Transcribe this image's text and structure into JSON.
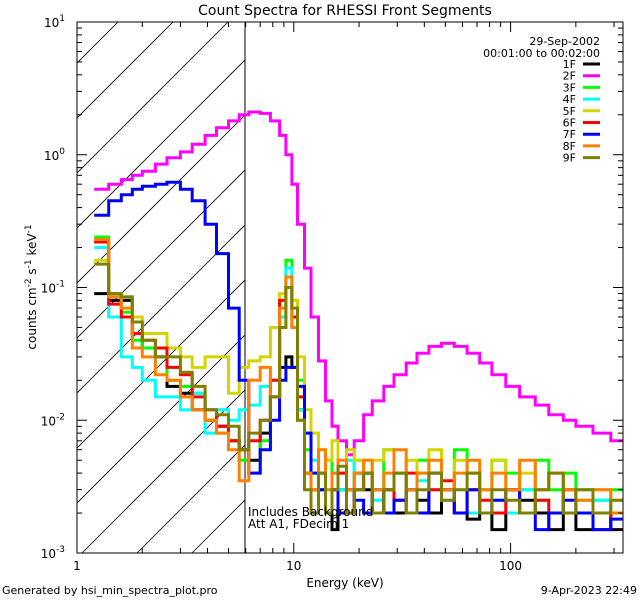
{
  "chart_data": {
    "type": "line",
    "title": "Count Spectra for RHESSI Front Segments",
    "xlabel": "Energy (keV)",
    "ylabel": "counts cm-2 s-1 keV-1",
    "xscale": "log",
    "yscale": "log",
    "xlim": [
      1,
      330
    ],
    "ylim": [
      0.001,
      10
    ],
    "x_tick_labels": [
      "1",
      "10",
      "100"
    ],
    "y_tick_labels": [
      "10^-3",
      "10^-2",
      "10^-1",
      "10^0",
      "10^1"
    ],
    "date": "29-Sep-2002",
    "time_range": "00:01:00 to 00:02:00",
    "annotations": [
      "Includes Background",
      "Att A1, FDecim 1"
    ],
    "hatched_region_keV": [
      1,
      6
    ],
    "legend_position": "top-right",
    "energy_bin_edges": [
      1.2,
      1.4,
      1.6,
      1.8,
      2.0,
      2.3,
      2.6,
      3.0,
      3.4,
      3.9,
      4.4,
      5.0,
      5.6,
      6.2,
      7.0,
      7.8,
      8.6,
      9.2,
      9.8,
      10.4,
      11.2,
      12,
      13,
      14,
      15,
      16,
      17.5,
      19,
      21,
      23,
      26,
      29,
      33,
      37,
      42,
      48,
      55,
      63,
      72,
      82,
      95,
      110,
      130,
      150,
      175,
      200,
      240,
      290,
      330
    ],
    "series": [
      {
        "name": "1F",
        "color": "#000000",
        "values": [
          0.09,
          0.08,
          0.08,
          0.045,
          0.035,
          0.03,
          0.018,
          0.016,
          0.012,
          0.01,
          0.009,
          0.007,
          0.006,
          0.005,
          0.008,
          0.015,
          0.025,
          0.03,
          0.025,
          0.012,
          0.004,
          0.002,
          0.003,
          0.002,
          0.0015,
          0.003,
          0.002,
          0.004,
          0.003,
          0.002,
          0.003,
          0.002,
          0.003,
          0.0025,
          0.002,
          0.003,
          0.002,
          0.0018,
          0.002,
          0.0015,
          0.002,
          0.0025,
          0.002,
          0.0015,
          0.002,
          0.0015,
          0.002,
          0.0015
        ]
      },
      {
        "name": "2F",
        "color": "#ff00ff",
        "values": [
          0.55,
          0.6,
          0.65,
          0.7,
          0.75,
          0.85,
          0.95,
          1.05,
          1.2,
          1.4,
          1.6,
          1.8,
          2.0,
          2.1,
          2.05,
          1.8,
          1.4,
          1.0,
          0.6,
          0.3,
          0.14,
          0.06,
          0.028,
          0.014,
          0.009,
          0.007,
          0.0055,
          0.007,
          0.011,
          0.014,
          0.018,
          0.022,
          0.027,
          0.032,
          0.036,
          0.038,
          0.036,
          0.032,
          0.027,
          0.022,
          0.018,
          0.015,
          0.013,
          0.011,
          0.01,
          0.009,
          0.008,
          0.007
        ]
      },
      {
        "name": "3F",
        "color": "#00ff00",
        "values": [
          0.24,
          0.09,
          0.065,
          0.04,
          0.035,
          0.03,
          0.02,
          0.018,
          0.016,
          0.01,
          0.008,
          0.007,
          0.005,
          0.004,
          0.007,
          0.015,
          0.05,
          0.16,
          0.06,
          0.02,
          0.006,
          0.004,
          0.003,
          0.005,
          0.003,
          0.004,
          0.003,
          0.005,
          0.004,
          0.003,
          0.006,
          0.004,
          0.003,
          0.005,
          0.004,
          0.003,
          0.006,
          0.004,
          0.003,
          0.005,
          0.004,
          0.003,
          0.005,
          0.003,
          0.004,
          0.003,
          0.0025,
          0.003
        ]
      },
      {
        "name": "4F",
        "color": "#00ffff",
        "values": [
          0.2,
          0.06,
          0.03,
          0.025,
          0.02,
          0.015,
          0.015,
          0.012,
          0.016,
          0.008,
          0.012,
          0.01,
          0.012,
          0.013,
          0.018,
          0.02,
          0.06,
          0.14,
          0.05,
          0.012,
          0.008,
          0.005,
          0.004,
          0.003,
          0.004,
          0.003,
          0.005,
          0.003,
          0.004,
          0.0025,
          0.003,
          0.004,
          0.003,
          0.0035,
          0.003,
          0.0025,
          0.003,
          0.002,
          0.003,
          0.0025,
          0.002,
          0.003,
          0.0025,
          0.002,
          0.003,
          0.002,
          0.0025,
          0.002
        ]
      },
      {
        "name": "5F",
        "color": "#d4d400",
        "values": [
          0.16,
          0.085,
          0.085,
          0.06,
          0.045,
          0.045,
          0.035,
          0.03,
          0.025,
          0.03,
          0.03,
          0.016,
          0.025,
          0.028,
          0.03,
          0.05,
          0.09,
          0.1,
          0.08,
          0.03,
          0.012,
          0.008,
          0.006,
          0.005,
          0.007,
          0.004,
          0.006,
          0.005,
          0.004,
          0.005,
          0.006,
          0.004,
          0.005,
          0.004,
          0.006,
          0.003,
          0.005,
          0.004,
          0.003,
          0.005,
          0.003,
          0.004,
          0.003,
          0.004,
          0.003,
          0.0025,
          0.003,
          0.0025
        ]
      },
      {
        "name": "6F",
        "color": "#ff0000",
        "values": [
          0.22,
          0.075,
          0.06,
          0.045,
          0.04,
          0.035,
          0.025,
          0.022,
          0.015,
          0.012,
          0.009,
          0.007,
          0.006,
          0.007,
          0.01,
          0.02,
          0.08,
          0.1,
          0.06,
          0.015,
          0.004,
          0.003,
          0.004,
          0.002,
          0.003,
          0.004,
          0.002,
          0.003,
          0.004,
          0.002,
          0.003,
          0.0025,
          0.004,
          0.002,
          0.003,
          0.0035,
          0.002,
          0.003,
          0.0025,
          0.002,
          0.003,
          0.002,
          0.0025,
          0.002,
          0.003,
          0.002,
          0.0015,
          0.002
        ]
      },
      {
        "name": "7F",
        "color": "#0000ff",
        "values": [
          0.35,
          0.45,
          0.5,
          0.55,
          0.58,
          0.6,
          0.62,
          0.55,
          0.45,
          0.3,
          0.18,
          0.07,
          0.02,
          0.004,
          0.006,
          0.01,
          0.02,
          0.025,
          0.025,
          0.018,
          0.008,
          0.004,
          0.003,
          0.002,
          0.003,
          0.002,
          0.003,
          0.0025,
          0.002,
          0.003,
          0.002,
          0.0025,
          0.003,
          0.002,
          0.004,
          0.003,
          0.002,
          0.003,
          0.002,
          0.0025,
          0.003,
          0.002,
          0.0015,
          0.002,
          0.0025,
          0.002,
          0.0015,
          0.0018
        ]
      },
      {
        "name": "8F",
        "color": "#ff8000",
        "values": [
          0.23,
          0.085,
          0.07,
          0.035,
          0.03,
          0.022,
          0.02,
          0.015,
          0.012,
          0.01,
          0.008,
          0.006,
          0.0035,
          0.02,
          0.025,
          0.015,
          0.07,
          0.12,
          0.05,
          0.01,
          0.004,
          0.003,
          0.006,
          0.003,
          0.004,
          0.005,
          0.003,
          0.004,
          0.005,
          0.003,
          0.004,
          0.006,
          0.003,
          0.004,
          0.005,
          0.003,
          0.004,
          0.005,
          0.003,
          0.004,
          0.003,
          0.005,
          0.003,
          0.004,
          0.003,
          0.0025,
          0.003,
          0.002
        ]
      },
      {
        "name": "9F",
        "color": "#808000",
        "values": [
          0.15,
          0.09,
          0.085,
          0.055,
          0.04,
          0.03,
          0.03,
          0.023,
          0.018,
          0.012,
          0.011,
          0.009,
          0.006,
          0.008,
          0.01,
          0.015,
          0.05,
          0.1,
          0.07,
          0.01,
          0.003,
          0.002,
          0.004,
          0.002,
          0.003,
          0.0045,
          0.002,
          0.003,
          0.004,
          0.002,
          0.003,
          0.004,
          0.002,
          0.003,
          0.004,
          0.0025,
          0.003,
          0.004,
          0.002,
          0.003,
          0.0025,
          0.002,
          0.003,
          0.004,
          0.002,
          0.003,
          0.002,
          0.0025
        ]
      }
    ]
  },
  "footer": {
    "generated_by": "Generated by hsi_min_spectra_plot.pro",
    "timestamp": "9-Apr-2023 22:49"
  }
}
